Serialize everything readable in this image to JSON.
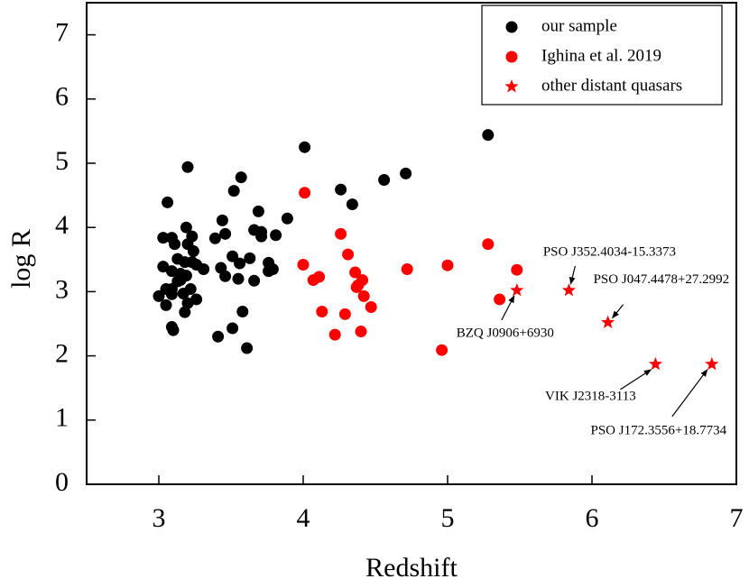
{
  "chart_data": {
    "type": "scatter",
    "x_label": "Redshift",
    "y_label": "log R",
    "xlim": [
      2.5,
      7
    ],
    "ylim": [
      0,
      7.5
    ],
    "xticks": [
      3,
      4,
      5,
      6,
      7
    ],
    "yticks": [
      0,
      1,
      2,
      3,
      4,
      5,
      6,
      7
    ],
    "legend": "upper right",
    "series": [
      {
        "name": "our sample",
        "color": "#000000",
        "marker": "circle",
        "x": [
          3.06,
          3.2,
          3.03,
          3.09,
          3.11,
          3.19,
          3.23,
          3.2,
          3.24,
          3.13,
          3.18,
          3.23,
          3.26,
          3.31,
          3.03,
          3.09,
          3.15,
          3.19,
          3.13,
          3.05,
          3.09,
          3.22,
          3.0,
          3.09,
          3.17,
          3.26,
          3.05,
          3.2,
          3.18,
          3.09,
          3.1,
          3.15,
          3.39,
          3.44,
          3.46,
          3.52,
          3.57,
          3.51,
          3.56,
          3.43,
          3.46,
          3.55,
          3.63,
          3.66,
          3.58,
          3.51,
          3.41,
          3.61,
          3.69,
          3.66,
          3.71,
          3.71,
          3.76,
          3.76,
          3.79,
          3.81,
          3.89,
          4.01,
          4.26,
          4.34,
          4.56,
          4.71,
          5.28
        ],
        "y": [
          4.39,
          4.94,
          3.84,
          3.84,
          3.74,
          4.0,
          3.86,
          3.74,
          3.63,
          3.51,
          3.46,
          3.46,
          3.42,
          3.35,
          3.39,
          3.32,
          3.28,
          3.25,
          3.16,
          3.04,
          3.04,
          3.04,
          2.93,
          2.96,
          2.97,
          2.88,
          2.79,
          2.82,
          2.68,
          2.45,
          2.4,
          3.18,
          3.83,
          4.11,
          3.9,
          4.57,
          4.78,
          3.55,
          3.44,
          3.37,
          3.24,
          3.2,
          3.52,
          3.17,
          2.69,
          2.43,
          2.3,
          2.12,
          4.25,
          3.96,
          3.86,
          3.93,
          3.45,
          3.32,
          3.35,
          3.88,
          4.14,
          5.25,
          4.59,
          4.36,
          4.74,
          4.84,
          5.44
        ]
      },
      {
        "name": "Ighina et al. 2019",
        "color": "#ff0000",
        "marker": "circle",
        "x": [
          4.01,
          4.0,
          4.07,
          4.11,
          4.13,
          4.26,
          4.31,
          4.29,
          4.22,
          4.36,
          4.38,
          4.41,
          4.37,
          4.42,
          4.47,
          4.4,
          4.72,
          5.0,
          5.28,
          5.48,
          5.36,
          4.96
        ],
        "y": [
          4.54,
          3.42,
          3.18,
          3.23,
          2.69,
          3.9,
          3.58,
          2.65,
          2.33,
          3.3,
          3.1,
          3.18,
          3.07,
          2.93,
          2.76,
          2.38,
          3.35,
          3.41,
          3.74,
          3.34,
          2.88,
          2.09
        ]
      },
      {
        "name": "other distant quasars",
        "color": "#ff0000",
        "marker": "star",
        "x": [
          5.48,
          5.84,
          6.11,
          6.44,
          6.83
        ],
        "y": [
          3.02,
          3.02,
          2.52,
          1.87,
          1.87
        ],
        "labels": [
          "BZQ J0906+6930",
          "PSO J352.4034-15.3373",
          "PSO J047.4478+27.2992",
          "VIK J2318-3113",
          "PSO J172.3556+18.7734"
        ]
      }
    ]
  }
}
